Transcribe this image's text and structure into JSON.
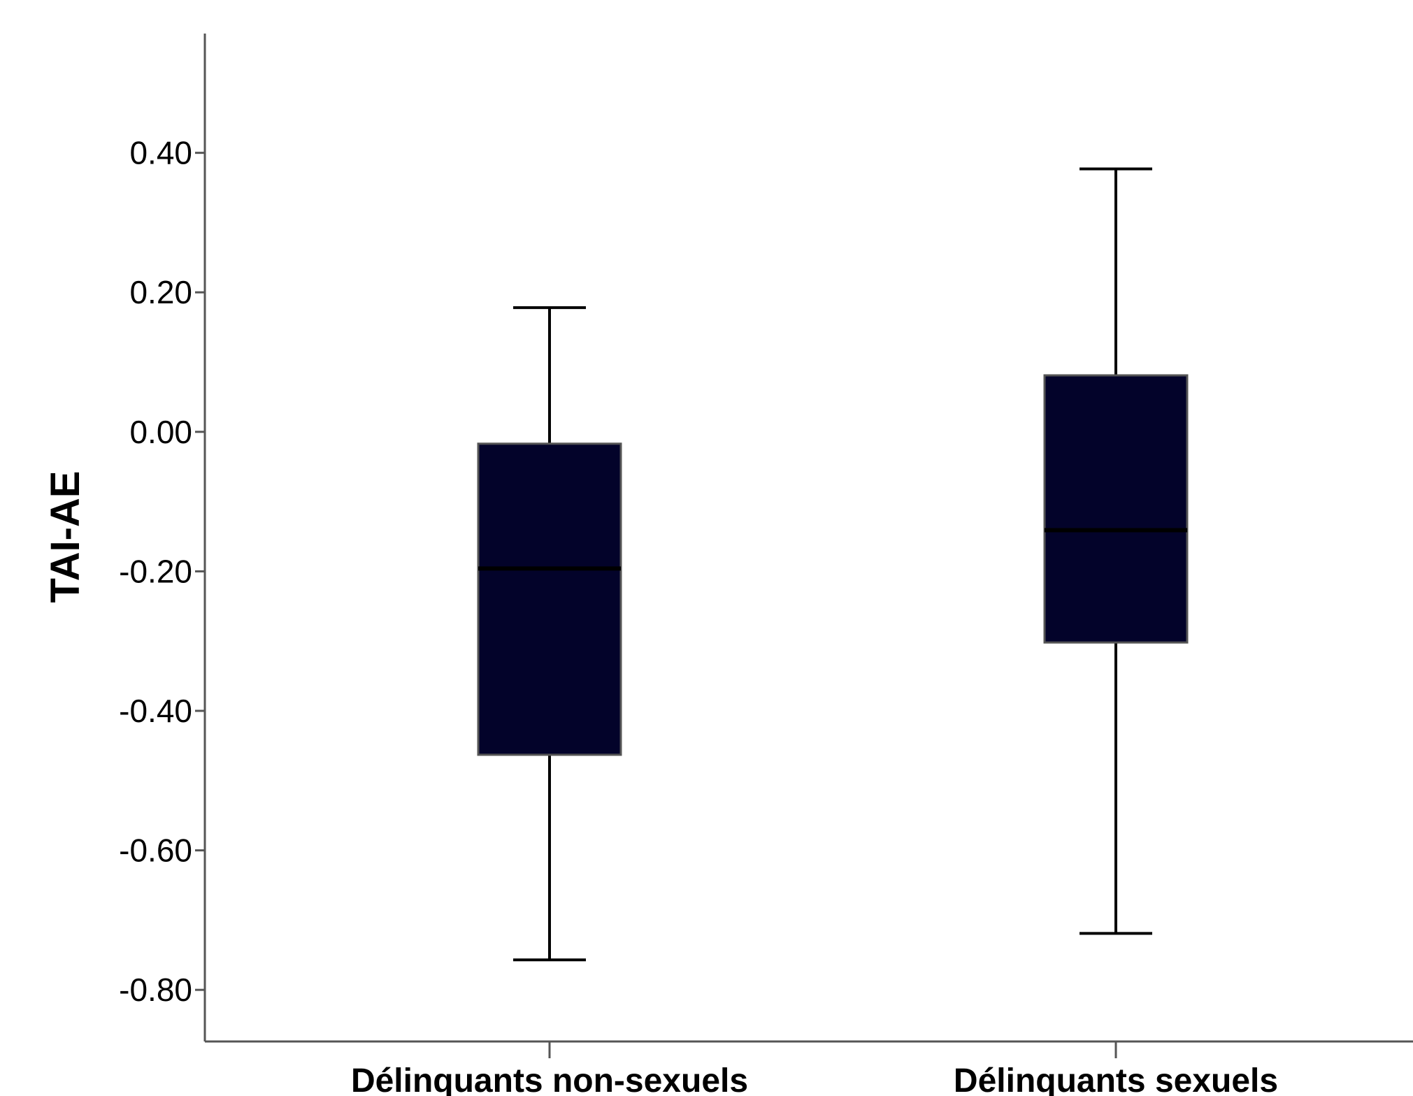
{
  "chart_data": {
    "type": "boxplot",
    "title": "",
    "xlabel": "",
    "ylabel": "TAI-AE",
    "ylim": [
      -0.874,
      0.571
    ],
    "yticks": [
      0.4,
      0.2,
      0.0,
      -0.2,
      -0.4,
      -0.6,
      -0.8
    ],
    "ytick_labels": [
      "0.40",
      "0.20",
      "0.00",
      "-0.20",
      "-0.40",
      "-0.60",
      "-0.80"
    ],
    "categories": [
      "Délinquants non-sexuels",
      "Délinquants sexuels"
    ],
    "boxes": [
      {
        "category": "Délinquants non-sexuels",
        "whisker_low": -0.757,
        "q1": -0.463,
        "median": -0.196,
        "q3": -0.017,
        "whisker_high": 0.178
      },
      {
        "category": "Délinquants sexuels",
        "whisker_low": -0.719,
        "q1": -0.302,
        "median": -0.141,
        "q3": 0.081,
        "whisker_high": 0.377
      }
    ],
    "grid": false,
    "legend": "none",
    "colors": {
      "box_fill": "#03032a",
      "axis": "#555555",
      "whisker": "#000000"
    }
  }
}
